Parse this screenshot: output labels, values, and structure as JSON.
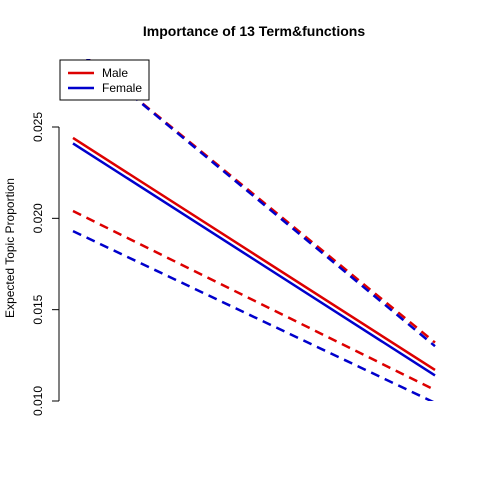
{
  "chart_data": {
    "type": "line",
    "title": "Importance of 13 Term&functions",
    "xlabel": "",
    "ylabel": "Expected Topic Proportion",
    "x": [
      0,
      1
    ],
    "ylim": [
      0.01,
      0.0275
    ],
    "yticks": [
      0.01,
      0.015,
      0.02,
      0.025
    ],
    "ytick_labels": [
      "0.010",
      "0.015",
      "0.020",
      "0.025"
    ],
    "grid": false,
    "legend_position": "top-left",
    "series": [
      {
        "name": "Male",
        "color": "#dd0000",
        "style": "solid",
        "values": [
          0.0244,
          0.0117
        ]
      },
      {
        "name": "Female",
        "color": "#0000cc",
        "style": "solid",
        "values": [
          0.0241,
          0.0114
        ]
      },
      {
        "name": "",
        "color": "#dd0000",
        "style": "dashed",
        "values": [
          0.0294,
          0.0132
        ]
      },
      {
        "name": "",
        "color": "#0000cc",
        "style": "dashed",
        "values": [
          0.0294,
          0.013
        ]
      },
      {
        "name": "",
        "color": "#dd0000",
        "style": "dashed",
        "values": [
          0.0204,
          0.0106
        ]
      },
      {
        "name": "",
        "color": "#0000cc",
        "style": "dashed",
        "values": [
          0.0193,
          0.0099
        ]
      }
    ]
  }
}
